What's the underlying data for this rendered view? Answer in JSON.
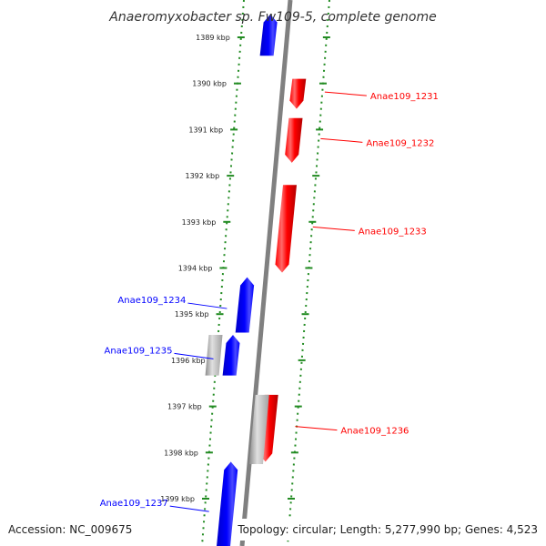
{
  "title": "Anaeromyxobacter sp. Fw109-5, complete genome",
  "footer": {
    "accession": "Accession: NC_009675",
    "summary": "Topology: circular; Length: 5,277,990 bp; Genes: 4,523"
  },
  "colors": {
    "forward_strand": "#ff0000",
    "reverse_strand": "#0000ff",
    "unlabeled_gene": "#b4b4b4",
    "track_guide": "#228b22",
    "backbone": "#808080"
  },
  "scale": {
    "unit": "kbp",
    "ticks": [
      {
        "kbp": 1389,
        "label": "1389 kbp"
      },
      {
        "kbp": 1390,
        "label": "1390 kbp"
      },
      {
        "kbp": 1391,
        "label": "1391 kbp"
      },
      {
        "kbp": 1392,
        "label": "1392 kbp"
      },
      {
        "kbp": 1393,
        "label": "1393 kbp"
      },
      {
        "kbp": 1394,
        "label": "1394 kbp"
      },
      {
        "kbp": 1395,
        "label": "1395 kbp"
      },
      {
        "kbp": 1396,
        "label": "1396 kbp"
      },
      {
        "kbp": 1397,
        "label": "1397 kbp"
      },
      {
        "kbp": 1398,
        "label": "1398 kbp"
      },
      {
        "kbp": 1399,
        "label": "1399 kbp"
      }
    ]
  },
  "genes": [
    {
      "id": "g0",
      "label": "",
      "strand": "reverse",
      "start_kbp": 1388.5,
      "end_kbp": 1389.4
    },
    {
      "id": "g1",
      "label": "Anae109_1231",
      "strand": "forward",
      "start_kbp": 1389.9,
      "end_kbp": 1390.55
    },
    {
      "id": "g2",
      "label": "Anae109_1232",
      "strand": "forward",
      "start_kbp": 1390.75,
      "end_kbp": 1391.72
    },
    {
      "id": "g3",
      "label": "Anae109_1233",
      "strand": "forward",
      "start_kbp": 1392.2,
      "end_kbp": 1394.1
    },
    {
      "id": "g4",
      "label": "Anae109_1234",
      "strand": "reverse",
      "start_kbp": 1394.2,
      "end_kbp": 1395.4
    },
    {
      "id": "g5",
      "label": "",
      "strand": "unknown",
      "start_kbp": 1395.45,
      "end_kbp": 1396.33
    },
    {
      "id": "g6",
      "label": "Anae109_1235",
      "strand": "reverse",
      "start_kbp": 1395.45,
      "end_kbp": 1396.33
    },
    {
      "id": "g7",
      "label": "Anae109_1236",
      "strand": "forward",
      "start_kbp": 1396.75,
      "end_kbp": 1398.2
    },
    {
      "id": "g8",
      "label": "",
      "strand": "unknown",
      "start_kbp": 1396.75,
      "end_kbp": 1398.25
    },
    {
      "id": "g9",
      "label": "Anae109_1237",
      "strand": "reverse",
      "start_kbp": 1398.2,
      "end_kbp": 1400.2
    }
  ]
}
